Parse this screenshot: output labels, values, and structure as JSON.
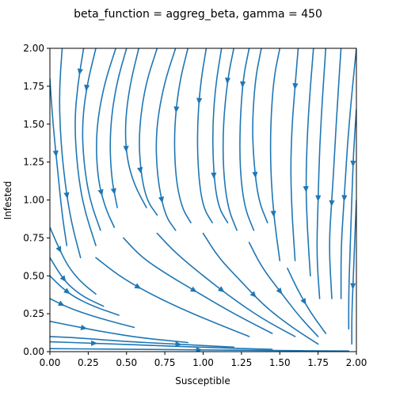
{
  "chart_data": {
    "type": "streamplot",
    "title": "beta_function = aggreg_beta, gamma = 450",
    "xlabel": "Susceptible",
    "ylabel": "Infested",
    "xlim": [
      0.0,
      2.0
    ],
    "ylim": [
      0.0,
      2.0
    ],
    "xticks": [
      "0.00",
      "0.25",
      "0.50",
      "0.75",
      "1.00",
      "1.25",
      "1.50",
      "1.75",
      "2.00"
    ],
    "yticks": [
      "0.00",
      "0.25",
      "0.50",
      "0.75",
      "1.00",
      "1.25",
      "1.50",
      "1.75",
      "2.00"
    ],
    "xtick_values": [
      0,
      0.25,
      0.5,
      0.75,
      1.0,
      1.25,
      1.5,
      1.75,
      2.0
    ],
    "ytick_values": [
      0,
      0.25,
      0.5,
      0.75,
      1.0,
      1.25,
      1.5,
      1.75,
      2.0
    ],
    "line_color": "#1f77b4",
    "streamlines": [
      {
        "points": [
          [
            0.0,
            1.8
          ],
          [
            0.02,
            1.5
          ],
          [
            0.05,
            1.2
          ],
          [
            0.08,
            0.9
          ],
          [
            0.11,
            0.7
          ]
        ],
        "arrow": 0.45
      },
      {
        "points": [
          [
            0.08,
            2.0
          ],
          [
            0.06,
            1.7
          ],
          [
            0.07,
            1.4
          ],
          [
            0.1,
            1.1
          ],
          [
            0.14,
            0.85
          ],
          [
            0.2,
            0.62
          ]
        ],
        "arrow": 0.7
      },
      {
        "points": [
          [
            0.22,
            2.0
          ],
          [
            0.18,
            1.75
          ],
          [
            0.16,
            1.5
          ],
          [
            0.18,
            1.2
          ],
          [
            0.22,
            0.95
          ],
          [
            0.3,
            0.7
          ]
        ],
        "arrow": 0.12
      },
      {
        "points": [
          [
            0.3,
            2.0
          ],
          [
            0.24,
            1.75
          ],
          [
            0.21,
            1.5
          ],
          [
            0.22,
            1.25
          ],
          [
            0.26,
            1.0
          ],
          [
            0.33,
            0.8
          ]
        ],
        "arrow": 0.22
      },
      {
        "points": [
          [
            0.43,
            2.0
          ],
          [
            0.35,
            1.75
          ],
          [
            0.3,
            1.45
          ],
          [
            0.31,
            1.15
          ],
          [
            0.36,
            0.95
          ],
          [
            0.42,
            0.82
          ]
        ],
        "arrow": 0.8
      },
      {
        "points": [
          [
            0.5,
            2.0
          ],
          [
            0.43,
            1.75
          ],
          [
            0.39,
            1.45
          ],
          [
            0.4,
            1.15
          ],
          [
            0.44,
            0.95
          ]
        ],
        "arrow": 0.9
      },
      {
        "points": [
          [
            0.58,
            2.0
          ],
          [
            0.52,
            1.75
          ],
          [
            0.49,
            1.5
          ],
          [
            0.5,
            1.28
          ],
          [
            0.55,
            1.1
          ],
          [
            0.63,
            0.95
          ]
        ],
        "arrow": 0.62
      },
      {
        "points": [
          [
            0.7,
            2.0
          ],
          [
            0.62,
            1.75
          ],
          [
            0.58,
            1.45
          ],
          [
            0.59,
            1.2
          ],
          [
            0.63,
            1.0
          ],
          [
            0.7,
            0.9
          ]
        ],
        "arrow": 0.72
      },
      {
        "points": [
          [
            0.82,
            2.0
          ],
          [
            0.74,
            1.75
          ],
          [
            0.69,
            1.45
          ],
          [
            0.7,
            1.15
          ],
          [
            0.75,
            0.9
          ],
          [
            0.82,
            0.8
          ]
        ],
        "arrow": 0.82
      },
      {
        "points": [
          [
            0.9,
            2.0
          ],
          [
            0.84,
            1.75
          ],
          [
            0.81,
            1.45
          ],
          [
            0.82,
            1.15
          ],
          [
            0.86,
            0.95
          ],
          [
            0.92,
            0.85
          ]
        ],
        "arrow": 0.35
      },
      {
        "points": [
          [
            1.02,
            2.0
          ],
          [
            0.98,
            1.75
          ],
          [
            0.96,
            1.45
          ],
          [
            0.97,
            1.15
          ],
          [
            1.0,
            0.95
          ],
          [
            1.06,
            0.85
          ]
        ],
        "arrow": 0.3
      },
      {
        "points": [
          [
            1.12,
            2.0
          ],
          [
            1.08,
            1.75
          ],
          [
            1.06,
            1.45
          ],
          [
            1.07,
            1.15
          ],
          [
            1.1,
            0.95
          ],
          [
            1.16,
            0.85
          ]
        ],
        "arrow": 0.72
      },
      {
        "points": [
          [
            1.2,
            2.0
          ],
          [
            1.16,
            1.8
          ],
          [
            1.13,
            1.5
          ],
          [
            1.13,
            1.2
          ],
          [
            1.16,
            0.95
          ],
          [
            1.22,
            0.8
          ]
        ],
        "arrow": 0.18
      },
      {
        "points": [
          [
            1.3,
            2.0
          ],
          [
            1.26,
            1.8
          ],
          [
            1.24,
            1.5
          ],
          [
            1.24,
            1.2
          ],
          [
            1.27,
            0.95
          ],
          [
            1.33,
            0.8
          ]
        ],
        "arrow": 0.2
      },
      {
        "points": [
          [
            1.38,
            2.0
          ],
          [
            1.34,
            1.8
          ],
          [
            1.32,
            1.5
          ],
          [
            1.33,
            1.25
          ],
          [
            1.36,
            1.0
          ],
          [
            1.42,
            0.85
          ]
        ],
        "arrow": 0.72
      },
      {
        "points": [
          [
            1.5,
            2.0
          ],
          [
            1.46,
            1.8
          ],
          [
            1.44,
            1.5
          ],
          [
            1.44,
            1.2
          ],
          [
            1.46,
            0.9
          ],
          [
            1.5,
            0.6
          ]
        ],
        "arrow": 0.78
      },
      {
        "points": [
          [
            1.62,
            2.0
          ],
          [
            1.6,
            1.75
          ],
          [
            1.58,
            1.5
          ],
          [
            1.57,
            1.2
          ],
          [
            1.58,
            0.9
          ],
          [
            1.6,
            0.6
          ]
        ],
        "arrow": 0.18
      },
      {
        "points": [
          [
            1.72,
            2.0
          ],
          [
            1.7,
            1.75
          ],
          [
            1.68,
            1.45
          ],
          [
            1.67,
            1.1
          ],
          [
            1.68,
            0.8
          ],
          [
            1.7,
            0.5
          ]
        ],
        "arrow": 0.62
      },
      {
        "points": [
          [
            1.8,
            2.0
          ],
          [
            1.78,
            1.7
          ],
          [
            1.76,
            1.35
          ],
          [
            1.75,
            1.0
          ],
          [
            1.74,
            0.65
          ],
          [
            1.76,
            0.35
          ]
        ],
        "arrow": 0.6
      },
      {
        "points": [
          [
            1.9,
            2.0
          ],
          [
            1.88,
            1.7
          ],
          [
            1.86,
            1.35
          ],
          [
            1.84,
            1.0
          ],
          [
            1.82,
            0.7
          ],
          [
            1.84,
            0.35
          ]
        ],
        "arrow": 0.62
      },
      {
        "points": [
          [
            2.0,
            2.0
          ],
          [
            1.97,
            1.7
          ],
          [
            1.94,
            1.35
          ],
          [
            1.92,
            1.0
          ],
          [
            1.9,
            0.7
          ],
          [
            1.9,
            0.35
          ]
        ],
        "arrow": 0.6
      },
      {
        "points": [
          [
            2.0,
            1.6
          ],
          [
            1.98,
            1.3
          ],
          [
            1.97,
            1.0
          ],
          [
            1.96,
            0.7
          ],
          [
            1.95,
            0.4
          ],
          [
            1.95,
            0.15
          ]
        ],
        "arrow": 0.25
      },
      {
        "points": [
          [
            2.0,
            1.0
          ],
          [
            1.99,
            0.75
          ],
          [
            1.98,
            0.5
          ],
          [
            1.97,
            0.25
          ],
          [
            1.97,
            0.05
          ]
        ],
        "arrow": 0.6
      },
      {
        "points": [
          [
            0.0,
            0.82
          ],
          [
            0.06,
            0.68
          ],
          [
            0.12,
            0.56
          ],
          [
            0.2,
            0.46
          ],
          [
            0.3,
            0.38
          ]
        ],
        "arrow": 0.3
      },
      {
        "points": [
          [
            0.0,
            0.62
          ],
          [
            0.06,
            0.52
          ],
          [
            0.12,
            0.44
          ],
          [
            0.22,
            0.36
          ],
          [
            0.35,
            0.3
          ]
        ],
        "arrow": 0.35
      },
      {
        "points": [
          [
            0.0,
            0.5
          ],
          [
            0.08,
            0.42
          ],
          [
            0.16,
            0.36
          ],
          [
            0.28,
            0.3
          ],
          [
            0.45,
            0.24
          ]
        ],
        "arrow": 0.3
      },
      {
        "points": [
          [
            0.0,
            0.35
          ],
          [
            0.1,
            0.3
          ],
          [
            0.2,
            0.26
          ],
          [
            0.36,
            0.21
          ],
          [
            0.55,
            0.16
          ]
        ],
        "arrow": 0.15
      },
      {
        "points": [
          [
            0.0,
            0.2
          ],
          [
            0.15,
            0.17
          ],
          [
            0.35,
            0.13
          ],
          [
            0.6,
            0.09
          ],
          [
            0.9,
            0.06
          ]
        ],
        "arrow": 0.25
      },
      {
        "points": [
          [
            0.0,
            0.1
          ],
          [
            0.2,
            0.09
          ],
          [
            0.45,
            0.07
          ],
          [
            0.8,
            0.05
          ],
          [
            1.2,
            0.03
          ]
        ],
        "arrow": 0.7
      },
      {
        "points": [
          [
            0.0,
            0.065
          ],
          [
            0.3,
            0.055
          ],
          [
            0.7,
            0.04
          ],
          [
            1.1,
            0.025
          ],
          [
            1.45,
            0.015
          ]
        ],
        "arrow": 0.2
      },
      {
        "points": [
          [
            0.0,
            0.02
          ],
          [
            0.4,
            0.017
          ],
          [
            0.9,
            0.012
          ],
          [
            1.4,
            0.008
          ],
          [
            1.95,
            0.004
          ]
        ],
        "arrow": 0.5
      },
      {
        "points": [
          [
            0.3,
            0.62
          ],
          [
            0.45,
            0.5
          ],
          [
            0.62,
            0.4
          ],
          [
            0.82,
            0.3
          ],
          [
            1.05,
            0.2
          ],
          [
            1.3,
            0.1
          ]
        ],
        "arrow": 0.3
      },
      {
        "points": [
          [
            0.48,
            0.75
          ],
          [
            0.6,
            0.62
          ],
          [
            0.78,
            0.5
          ],
          [
            0.98,
            0.38
          ],
          [
            1.2,
            0.25
          ],
          [
            1.45,
            0.12
          ]
        ],
        "arrow": 0.5
      },
      {
        "points": [
          [
            0.7,
            0.78
          ],
          [
            0.82,
            0.65
          ],
          [
            1.0,
            0.5
          ],
          [
            1.18,
            0.36
          ],
          [
            1.38,
            0.22
          ],
          [
            1.6,
            0.1
          ]
        ],
        "arrow": 0.5
      },
      {
        "points": [
          [
            1.0,
            0.78
          ],
          [
            1.1,
            0.62
          ],
          [
            1.25,
            0.46
          ],
          [
            1.4,
            0.3
          ],
          [
            1.58,
            0.16
          ],
          [
            1.75,
            0.05
          ]
        ],
        "arrow": 0.5
      },
      {
        "points": [
          [
            1.3,
            0.72
          ],
          [
            1.38,
            0.56
          ],
          [
            1.5,
            0.4
          ],
          [
            1.62,
            0.24
          ],
          [
            1.75,
            0.1
          ]
        ],
        "arrow": 0.5
      },
      {
        "points": [
          [
            1.55,
            0.55
          ],
          [
            1.62,
            0.4
          ],
          [
            1.7,
            0.26
          ],
          [
            1.8,
            0.12
          ]
        ],
        "arrow": 0.5
      }
    ]
  }
}
